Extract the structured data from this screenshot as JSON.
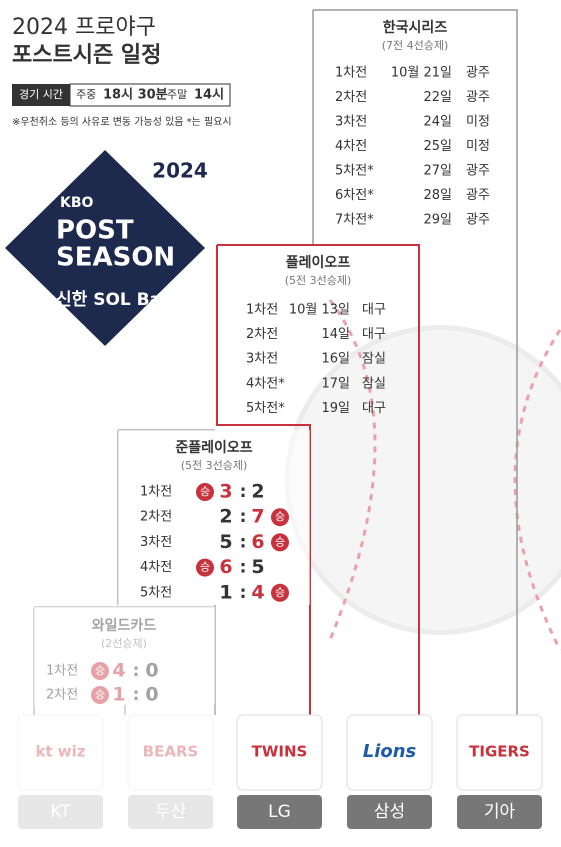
{
  "header": {
    "title_line1": "2024 프로야구",
    "title_line2": "포스트시즌 일정",
    "time_label": "경기 시간",
    "weekday_label": "주중",
    "weekday_time": "18시 30분",
    "weekend_label": "주말",
    "weekend_time": "14시",
    "note": "※우천취소 등의 사유로 변동 가능성 있음 *는 필요시"
  },
  "logo": {
    "year": "2024",
    "kbo": "KBO",
    "line1": "POST",
    "line2": "SEASON",
    "sponsor": "신한 SOL Bank"
  },
  "korean_series": {
    "title": "한국시리즈",
    "format": "(7전 4선승제)",
    "games": [
      {
        "game": "1차전",
        "date": "10월 21일",
        "venue": "광주"
      },
      {
        "game": "2차전",
        "date": "22일",
        "venue": "광주"
      },
      {
        "game": "3차전",
        "date": "24일",
        "venue": "미정"
      },
      {
        "game": "4차전",
        "date": "25일",
        "venue": "미정"
      },
      {
        "game": "5차전*",
        "date": "27일",
        "venue": "광주"
      },
      {
        "game": "6차전*",
        "date": "28일",
        "venue": "광주"
      },
      {
        "game": "7차전*",
        "date": "29일",
        "venue": "광주"
      }
    ]
  },
  "playoff": {
    "title": "플레이오프",
    "format": "(5전 3선승제)",
    "games": [
      {
        "game": "1차전",
        "date": "10월 13일",
        "venue": "대구"
      },
      {
        "game": "2차전",
        "date": "14일",
        "venue": "대구"
      },
      {
        "game": "3차전",
        "date": "16일",
        "venue": "잠실"
      },
      {
        "game": "4차전*",
        "date": "17일",
        "venue": "잠실"
      },
      {
        "game": "5차전*",
        "date": "19일",
        "venue": "대구"
      }
    ]
  },
  "semi_playoff": {
    "title": "준플레이오프",
    "format": "(5전 3선승제)",
    "win_label": "승",
    "games": [
      {
        "game": "1차전",
        "scores": [
          3,
          2
        ],
        "winner_side": "left"
      },
      {
        "game": "2차전",
        "scores": [
          2,
          7
        ],
        "winner_side": "right"
      },
      {
        "game": "3차전",
        "scores": [
          5,
          6
        ],
        "winner_side": "right"
      },
      {
        "game": "4차전",
        "scores": [
          6,
          5
        ],
        "winner_side": "left"
      },
      {
        "game": "5차전",
        "scores": [
          1,
          4
        ],
        "winner_side": "right"
      }
    ]
  },
  "wildcard": {
    "title": "와일드카드",
    "format": "(2선승제)",
    "win_label": "승",
    "games": [
      {
        "game": "1차전",
        "scores": [
          4,
          0
        ],
        "winner_side": "left"
      },
      {
        "game": "2차전",
        "scores": [
          1,
          0
        ],
        "winner_side": "left"
      }
    ]
  },
  "teams": [
    {
      "name": "KT",
      "logo_text": "kt wiz"
    },
    {
      "name": "두산",
      "logo_text": "BEARS"
    },
    {
      "name": "LG",
      "logo_text": "TWINS"
    },
    {
      "name": "삼성",
      "logo_text": "Lions"
    },
    {
      "name": "기아",
      "logo_text": "TIGERS"
    }
  ]
}
